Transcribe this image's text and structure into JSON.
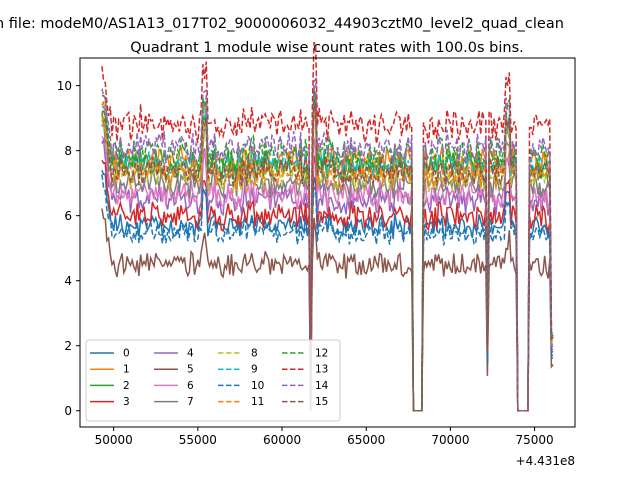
{
  "figure": {
    "suptitle": "n file: modeM0/AS1A13_017T02_9000006032_44903cztM0_level2_quad_clean",
    "offset_label": "+4.431e8"
  },
  "chart_data": {
    "type": "line",
    "title": "Quadrant 1 module wise count rates with 100.0s bins.",
    "xlabel": "",
    "ylabel": "",
    "x_offset": 443100000,
    "xlim": [
      48000,
      77400
    ],
    "ylim": [
      -0.5,
      10.85
    ],
    "x_ticks": [
      50000,
      55000,
      60000,
      65000,
      70000,
      75000
    ],
    "x_tick_labels": [
      "50000",
      "55000",
      "60000",
      "65000",
      "70000",
      "75000"
    ],
    "y_ticks": [
      0,
      2,
      4,
      6,
      8,
      10
    ],
    "y_tick_labels": [
      "0",
      "2",
      "4",
      "6",
      "8",
      "10"
    ],
    "grid": false,
    "legend_position": "lower-left",
    "legend_columns": 4,
    "bin_seconds": 100,
    "x_start": 49300,
    "x_end": 76100,
    "gaps": [
      {
        "from": 61550,
        "to": 61580
      },
      {
        "from": 61700,
        "to": 61720
      },
      {
        "from": 67800,
        "to": 68300
      },
      {
        "from": 74000,
        "to": 74600
      }
    ],
    "dips": [
      {
        "at": 72200,
        "depth_factor": 0.25
      },
      {
        "at": 76050,
        "depth_factor": 0.3
      }
    ],
    "spikes": [
      {
        "at": 55400,
        "amount": 1.5
      },
      {
        "at": 61950,
        "amount": 2.2
      },
      {
        "at": 73400,
        "amount": 1.6
      }
    ],
    "series": [
      {
        "name": "0",
        "mean": 5.7,
        "noise": 0.25,
        "color": "#1f77b4",
        "dash": "solid"
      },
      {
        "name": "1",
        "mean": 7.7,
        "noise": 0.3,
        "color": "#ff7f0e",
        "dash": "solid"
      },
      {
        "name": "2",
        "mean": 7.5,
        "noise": 0.35,
        "color": "#2ca02c",
        "dash": "solid"
      },
      {
        "name": "3",
        "mean": 6.0,
        "noise": 0.3,
        "color": "#d62728",
        "dash": "solid"
      },
      {
        "name": "4",
        "mean": 6.5,
        "noise": 0.3,
        "color": "#9467bd",
        "dash": "solid"
      },
      {
        "name": "5",
        "mean": 4.5,
        "noise": 0.3,
        "color": "#8c564b",
        "dash": "solid"
      },
      {
        "name": "6",
        "mean": 6.7,
        "noise": 0.3,
        "color": "#e377c2",
        "dash": "solid"
      },
      {
        "name": "7",
        "mean": 7.0,
        "noise": 0.3,
        "color": "#7f7f7f",
        "dash": "solid"
      },
      {
        "name": "8",
        "mean": 7.2,
        "noise": 0.3,
        "color": "#bcbd22",
        "dash": "dashed"
      },
      {
        "name": "9",
        "mean": 7.6,
        "noise": 0.3,
        "color": "#17becf",
        "dash": "dashed"
      },
      {
        "name": "10",
        "mean": 5.5,
        "noise": 0.25,
        "color": "#1f77b4",
        "dash": "dashed"
      },
      {
        "name": "11",
        "mean": 7.3,
        "noise": 0.3,
        "color": "#ff7f0e",
        "dash": "dashed"
      },
      {
        "name": "12",
        "mean": 7.9,
        "noise": 0.35,
        "color": "#2ca02c",
        "dash": "dashed"
      },
      {
        "name": "13",
        "mean": 8.8,
        "noise": 0.35,
        "color": "#d62728",
        "dash": "dashed"
      },
      {
        "name": "14",
        "mean": 8.1,
        "noise": 0.3,
        "color": "#9467bd",
        "dash": "dashed"
      },
      {
        "name": "15",
        "mean": 7.4,
        "noise": 0.3,
        "color": "#8c564b",
        "dash": "dashed"
      }
    ]
  }
}
